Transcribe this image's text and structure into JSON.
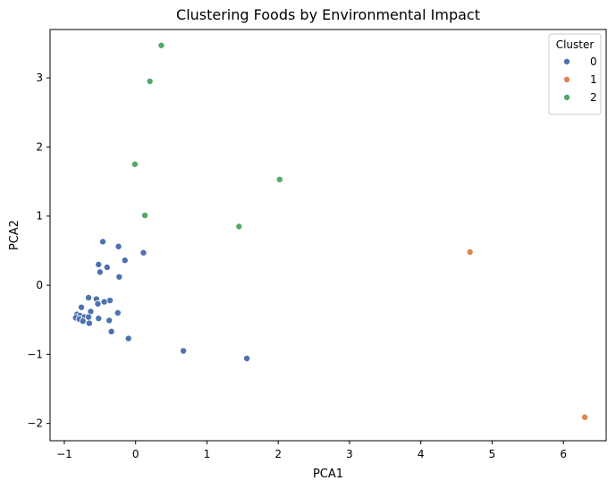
{
  "chart_data": {
    "type": "scatter",
    "title": "Clustering Foods by Environmental Impact",
    "xlabel": "PCA1",
    "ylabel": "PCA2",
    "xlim": [
      -1.2,
      6.6
    ],
    "ylim": [
      -2.25,
      3.7
    ],
    "xticks": [
      -1,
      0,
      1,
      2,
      3,
      4,
      5,
      6
    ],
    "yticks": [
      -2,
      -1,
      0,
      1,
      2,
      3
    ],
    "grid": false,
    "legend": {
      "title": "Cluster",
      "placement": "top-right",
      "entries": [
        "0",
        "1",
        "2"
      ]
    },
    "series": [
      {
        "name": "0",
        "color": "#4c72b0",
        "points": [
          [
            -0.46,
            0.63
          ],
          [
            -0.24,
            0.56
          ],
          [
            0.11,
            0.47
          ],
          [
            -0.15,
            0.36
          ],
          [
            -0.52,
            0.3
          ],
          [
            -0.4,
            0.26
          ],
          [
            -0.5,
            0.19
          ],
          [
            -0.23,
            0.12
          ],
          [
            -0.66,
            -0.18
          ],
          [
            -0.55,
            -0.2
          ],
          [
            -0.36,
            -0.22
          ],
          [
            -0.44,
            -0.24
          ],
          [
            -0.53,
            -0.27
          ],
          [
            -0.76,
            -0.32
          ],
          [
            -0.63,
            -0.38
          ],
          [
            -0.25,
            -0.4
          ],
          [
            -0.82,
            -0.42
          ],
          [
            -0.78,
            -0.44
          ],
          [
            -0.72,
            -0.46
          ],
          [
            -0.66,
            -0.46
          ],
          [
            -0.84,
            -0.47
          ],
          [
            -0.52,
            -0.48
          ],
          [
            -0.79,
            -0.49
          ],
          [
            -0.37,
            -0.51
          ],
          [
            -0.74,
            -0.52
          ],
          [
            -0.65,
            -0.55
          ],
          [
            -0.34,
            -0.67
          ],
          [
            -0.1,
            -0.77
          ],
          [
            0.67,
            -0.95
          ],
          [
            1.56,
            -1.06
          ]
        ]
      },
      {
        "name": "1",
        "color": "#dd8452",
        "points": [
          [
            4.69,
            0.48
          ],
          [
            6.3,
            -1.91
          ]
        ]
      },
      {
        "name": "2",
        "color": "#55a868",
        "points": [
          [
            0.36,
            3.47
          ],
          [
            0.2,
            2.95
          ],
          [
            -0.01,
            1.75
          ],
          [
            2.02,
            1.53
          ],
          [
            0.13,
            1.01
          ],
          [
            1.45,
            0.85
          ]
        ]
      }
    ]
  }
}
